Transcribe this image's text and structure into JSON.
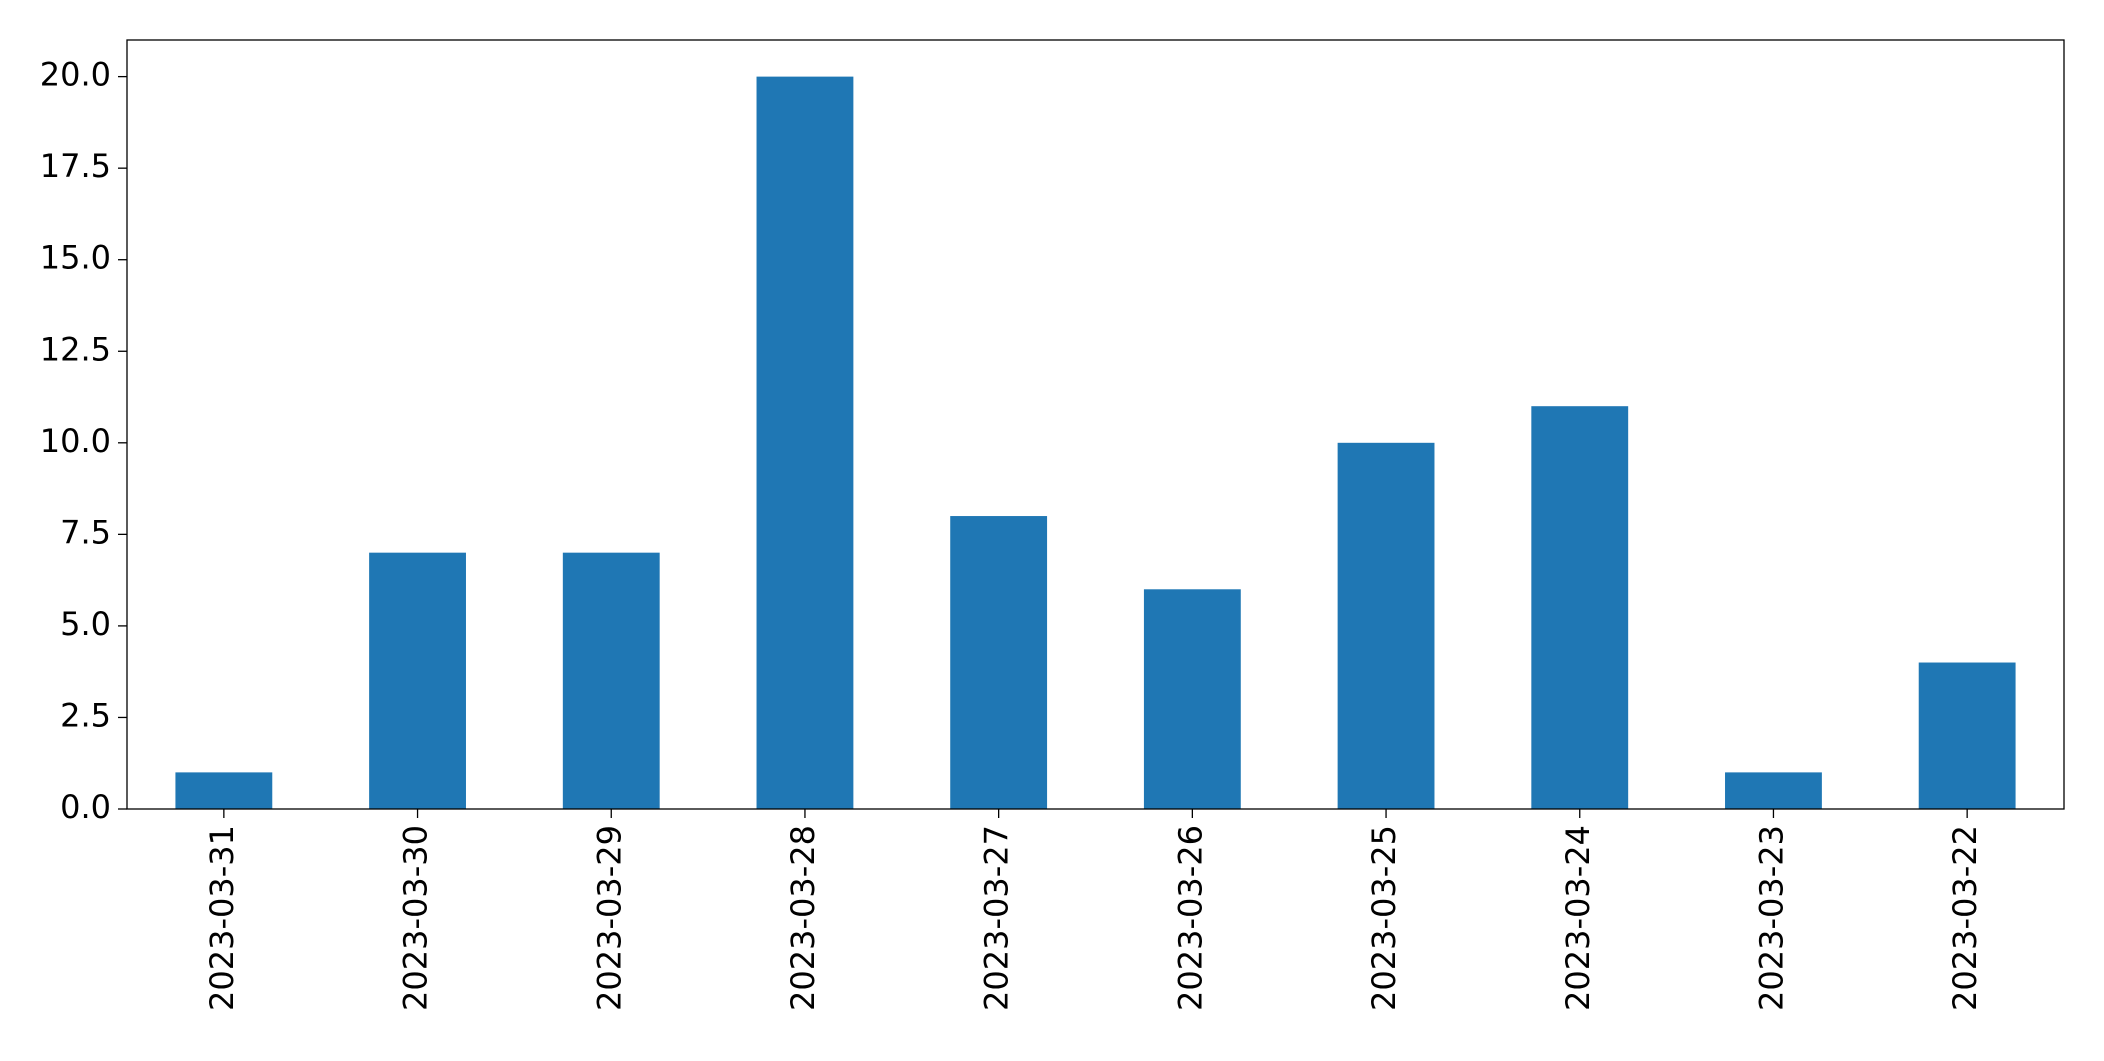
{
  "chart_data": {
    "type": "bar",
    "categories": [
      "2023-03-31",
      "2023-03-30",
      "2023-03-29",
      "2023-03-28",
      "2023-03-27",
      "2023-03-26",
      "2023-03-25",
      "2023-03-24",
      "2023-03-23",
      "2023-03-22"
    ],
    "values": [
      1,
      7,
      7,
      20,
      8,
      6,
      10,
      11,
      1,
      4
    ],
    "color": "#1f77b4",
    "ylim": [
      0,
      21
    ],
    "yticks": [
      {
        "value": 0,
        "label": "0.0"
      },
      2.5,
      {
        "value": 5,
        "label": "5.0"
      },
      7.5,
      {
        "value": 10,
        "label": "10.0"
      },
      12.5,
      {
        "value": 15,
        "label": "15.0"
      },
      17.5,
      {
        "value": 20,
        "label": "20.0"
      }
    ],
    "grid": false
  }
}
